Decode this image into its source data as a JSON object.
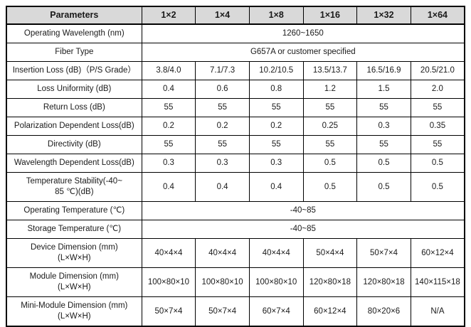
{
  "table": {
    "header": {
      "param_label": "Parameters",
      "columns": [
        "1×2",
        "1×4",
        "1×8",
        "1×16",
        "1×32",
        "1×64"
      ]
    },
    "rows": [
      {
        "label": "Operating Wavelength (nm)",
        "span": true,
        "value": "1260~1650"
      },
      {
        "label": "Fiber Type",
        "span": true,
        "value": "G657A or customer specified"
      },
      {
        "label": "Insertion Loss (dB)（P/S Grade）",
        "values": [
          "3.8/4.0",
          "7.1/7.3",
          "10.2/10.5",
          "13.5/13.7",
          "16.5/16.9",
          "20.5/21.0"
        ]
      },
      {
        "label": "Loss Uniformity (dB)",
        "values": [
          "0.4",
          "0.6",
          "0.8",
          "1.2",
          "1.5",
          "2.0"
        ]
      },
      {
        "label": "Return Loss (dB)",
        "values": [
          "55",
          "55",
          "55",
          "55",
          "55",
          "55"
        ]
      },
      {
        "label": "Polarization Dependent Loss(dB)",
        "values": [
          "0.2",
          "0.2",
          "0.2",
          "0.25",
          "0.3",
          "0.35"
        ]
      },
      {
        "label": "Directivity (dB)",
        "values": [
          "55",
          "55",
          "55",
          "55",
          "55",
          "55"
        ]
      },
      {
        "label": "Wavelength Dependent Loss(dB)",
        "values": [
          "0.3",
          "0.3",
          "0.3",
          "0.5",
          "0.5",
          "0.5"
        ]
      },
      {
        "label": "Temperature Stability(-40~\n85 ℃)(dB)",
        "values": [
          "0.4",
          "0.4",
          "0.4",
          "0.5",
          "0.5",
          "0.5"
        ]
      },
      {
        "label": "Operating Temperature (℃)",
        "span": true,
        "value": "-40~85"
      },
      {
        "label": "Storage Temperature (℃)",
        "span": true,
        "value": "-40~85"
      },
      {
        "label": "Device Dimension (mm)\n(L×W×H)",
        "values": [
          "40×4×4",
          "40×4×4",
          "40×4×4",
          "50×4×4",
          "50×7×4",
          "60×12×4"
        ]
      },
      {
        "label": "Module Dimension (mm)\n(L×W×H)",
        "values": [
          "100×80×10",
          "100×80×10",
          "100×80×10",
          "120×80×18",
          "120×80×18",
          "140×115×18"
        ]
      },
      {
        "label": "Mini-Module Dimension (mm)\n(L×W×H)",
        "values": [
          "50×7×4",
          "50×7×4",
          "60×7×4",
          "60×12×4",
          "80×20×6",
          "N/A"
        ]
      }
    ],
    "colors": {
      "header_bg": "#d9d9d9",
      "border": "#000000",
      "text": "#1a1a1a"
    }
  }
}
